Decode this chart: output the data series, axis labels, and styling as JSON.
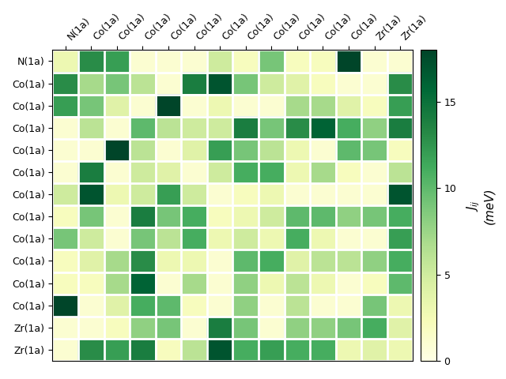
{
  "row_labels": [
    "N(1a)",
    "Co(1a)",
    "Co(1a)",
    "Co(1a)",
    "Co(1a)",
    "Co(1a)",
    "Co(1a)",
    "Co(1a)",
    "Co(1a)",
    "Co(1a)",
    "Co(1a)",
    "Co(1a)",
    "Zr(1a)",
    "Zr(1a)"
  ],
  "col_labels": [
    "N(1a)",
    "Co(1a)",
    "Co(1a)",
    "Co(1a)",
    "Co(1a)",
    "Co(1a)",
    "Co(1a)",
    "Co(1a)",
    "Co(1a)",
    "Co(1a)",
    "Co(1a)",
    "Co(1a)",
    "Zr(1a)",
    "Zr(1a)"
  ],
  "matrix": [
    [
      3,
      13,
      12,
      1,
      1,
      1,
      5,
      2,
      9,
      2,
      2,
      18,
      1,
      1
    ],
    [
      13,
      7,
      9,
      6,
      1,
      14,
      17,
      9,
      5,
      4,
      2,
      1,
      1,
      13
    ],
    [
      12,
      9,
      4,
      1,
      18,
      1,
      3,
      1,
      1,
      7,
      7,
      4,
      2,
      12
    ],
    [
      1,
      6,
      1,
      10,
      6,
      5,
      5,
      14,
      9,
      13,
      16,
      11,
      8,
      14
    ],
    [
      1,
      1,
      18,
      6,
      1,
      4,
      12,
      9,
      6,
      3,
      1,
      10,
      9,
      2
    ],
    [
      1,
      14,
      1,
      5,
      4,
      1,
      5,
      11,
      11,
      3,
      7,
      2,
      1,
      6
    ],
    [
      5,
      17,
      3,
      5,
      12,
      5,
      1,
      2,
      3,
      1,
      1,
      1,
      1,
      17
    ],
    [
      2,
      9,
      1,
      14,
      9,
      11,
      2,
      3,
      5,
      10,
      10,
      8,
      9,
      11
    ],
    [
      9,
      5,
      1,
      9,
      6,
      11,
      3,
      5,
      3,
      11,
      3,
      1,
      1,
      12
    ],
    [
      2,
      4,
      7,
      13,
      3,
      3,
      1,
      10,
      11,
      4,
      6,
      6,
      8,
      11
    ],
    [
      2,
      2,
      7,
      16,
      1,
      7,
      1,
      8,
      3,
      6,
      3,
      1,
      2,
      10
    ],
    [
      18,
      1,
      4,
      11,
      10,
      2,
      1,
      8,
      1,
      6,
      1,
      1,
      9,
      3
    ],
    [
      1,
      1,
      2,
      8,
      9,
      1,
      14,
      9,
      1,
      8,
      8,
      9,
      11,
      4
    ],
    [
      1,
      13,
      12,
      14,
      2,
      6,
      17,
      11,
      12,
      11,
      11,
      3,
      4,
      3
    ]
  ],
  "vmin": 0,
  "vmax": 18,
  "cbar_label_math": "$J_{ij}$",
  "cbar_label_unit": "(meV)",
  "cbar_ticks": [
    0,
    5,
    10,
    15
  ],
  "colormap": "YlGn",
  "figsize": [
    6.4,
    4.8
  ],
  "dpi": 100,
  "grid_color": "white",
  "grid_linewidth": 2,
  "tick_fontsize": 9,
  "cbar_fontsize": 11
}
